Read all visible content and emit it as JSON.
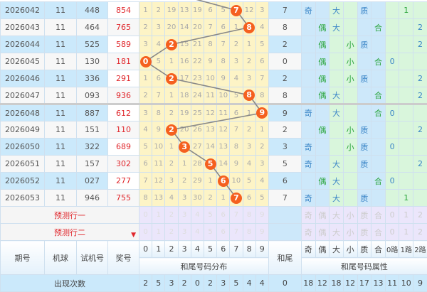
{
  "rows": [
    {
      "issue": "2026042",
      "machine": "11",
      "trial": "448",
      "prize": "854",
      "dist": [
        "1",
        "2",
        "19",
        "13",
        "19",
        "6",
        "5",
        "7",
        "12",
        "3"
      ],
      "tail": "7",
      "attrs": [
        "奇",
        "",
        "大",
        "",
        "质",
        "",
        "",
        "1",
        ""
      ],
      "odd": true
    },
    {
      "issue": "2026043",
      "machine": "11",
      "trial": "464",
      "prize": "765",
      "dist": [
        "2",
        "3",
        "20",
        "14",
        "20",
        "7",
        "6",
        "1",
        "8",
        "4"
      ],
      "tail": "8",
      "attrs": [
        "",
        "偶",
        "大",
        "",
        "",
        "合",
        "",
        "",
        "2"
      ],
      "odd": false
    },
    {
      "issue": "2026044",
      "machine": "11",
      "trial": "525",
      "prize": "589",
      "dist": [
        "3",
        "4",
        "2",
        "15",
        "21",
        "8",
        "7",
        "2",
        "1",
        "5"
      ],
      "tail": "2",
      "attrs": [
        "",
        "偶",
        "",
        "小",
        "质",
        "",
        "",
        "",
        "2"
      ],
      "odd": true
    },
    {
      "issue": "2026045",
      "machine": "11",
      "trial": "130",
      "prize": "181",
      "dist": [
        "0",
        "5",
        "1",
        "16",
        "22",
        "9",
        "8",
        "3",
        "2",
        "6"
      ],
      "tail": "0",
      "attrs": [
        "",
        "偶",
        "",
        "小",
        "",
        "合",
        "0",
        "",
        ""
      ],
      "odd": false
    },
    {
      "issue": "2026046",
      "machine": "11",
      "trial": "336",
      "prize": "291",
      "dist": [
        "1",
        "6",
        "2",
        "17",
        "23",
        "10",
        "9",
        "4",
        "3",
        "7"
      ],
      "tail": "2",
      "attrs": [
        "",
        "偶",
        "",
        "小",
        "质",
        "",
        "",
        "",
        "2"
      ],
      "odd": true
    },
    {
      "issue": "2026047",
      "machine": "11",
      "trial": "093",
      "prize": "936",
      "dist": [
        "2",
        "7",
        "1",
        "18",
        "24",
        "11",
        "10",
        "5",
        "8",
        "8"
      ],
      "tail": "8",
      "attrs": [
        "",
        "偶",
        "大",
        "",
        "",
        "合",
        "",
        "",
        "2"
      ],
      "odd": false
    },
    {
      "issue": "2026048",
      "machine": "11",
      "trial": "887",
      "prize": "612",
      "dist": [
        "3",
        "8",
        "2",
        "19",
        "25",
        "12",
        "11",
        "6",
        "1",
        "9"
      ],
      "tail": "9",
      "attrs": [
        "奇",
        "",
        "大",
        "",
        "",
        "合",
        "0",
        "",
        ""
      ],
      "odd": true
    },
    {
      "issue": "2026049",
      "machine": "11",
      "trial": "151",
      "prize": "110",
      "dist": [
        "4",
        "9",
        "2",
        "20",
        "26",
        "13",
        "12",
        "7",
        "2",
        "1"
      ],
      "tail": "2",
      "attrs": [
        "",
        "偶",
        "",
        "小",
        "质",
        "",
        "",
        "",
        "2"
      ],
      "odd": false
    },
    {
      "issue": "2026050",
      "machine": "11",
      "trial": "322",
      "prize": "689",
      "dist": [
        "5",
        "10",
        "1",
        "3",
        "27",
        "14",
        "13",
        "8",
        "3",
        "2"
      ],
      "tail": "3",
      "attrs": [
        "奇",
        "",
        "",
        "小",
        "质",
        "",
        "0",
        "",
        ""
      ],
      "odd": true
    },
    {
      "issue": "2026051",
      "machine": "11",
      "trial": "157",
      "prize": "302",
      "dist": [
        "6",
        "11",
        "2",
        "1",
        "28",
        "5",
        "14",
        "9",
        "4",
        "3"
      ],
      "tail": "5",
      "attrs": [
        "奇",
        "",
        "大",
        "",
        "质",
        "",
        "",
        "",
        "2"
      ],
      "odd": false
    },
    {
      "issue": "2026052",
      "machine": "11",
      "trial": "027",
      "prize": "277",
      "dist": [
        "7",
        "12",
        "3",
        "2",
        "29",
        "1",
        "6",
        "10",
        "5",
        "4"
      ],
      "tail": "6",
      "attrs": [
        "",
        "偶",
        "大",
        "",
        "",
        "合",
        "0",
        "",
        ""
      ],
      "odd": true
    },
    {
      "issue": "2026053",
      "machine": "11",
      "trial": "946",
      "prize": "755",
      "dist": [
        "8",
        "13",
        "4",
        "3",
        "30",
        "2",
        "1",
        "7",
        "6",
        "5"
      ],
      "tail": "7",
      "attrs": [
        "奇",
        "",
        "大",
        "",
        "质",
        "",
        "",
        "1",
        ""
      ],
      "odd": false
    }
  ],
  "predict": {
    "row1": "预测行一",
    "row2": "预测行二",
    "digits": [
      "0",
      "1",
      "2",
      "3",
      "4",
      "5",
      "6",
      "7",
      "8",
      "9"
    ],
    "attrs": [
      "奇",
      "偶",
      "大",
      "小",
      "质",
      "合",
      "0",
      "1",
      "2"
    ]
  },
  "header": {
    "issue": "期号",
    "machine": "机球",
    "trial": "试机号",
    "prize": "奖号",
    "digits": [
      "0",
      "1",
      "2",
      "3",
      "4",
      "5",
      "6",
      "7",
      "8",
      "9"
    ],
    "dist_title": "和尾号码分布",
    "tail": "和尾",
    "attrs": [
      "奇",
      "偶",
      "大",
      "小",
      "质",
      "合",
      "0路",
      "1路",
      "2路"
    ],
    "attr_title": "和尾号码属性"
  },
  "counts": {
    "label": "出现次数",
    "dist": [
      "2",
      "5",
      "3",
      "2",
      "0",
      "2",
      "3",
      "5",
      "4",
      "4"
    ],
    "tail": "0",
    "attrs": [
      "18",
      "12",
      "18",
      "12",
      "17",
      "13",
      "11",
      "10",
      "9"
    ]
  },
  "colors": {
    "ball": "#f5601f",
    "prize": "#e0262b",
    "blue_text": "#3a85c7",
    "green_text": "#2aa53b"
  }
}
